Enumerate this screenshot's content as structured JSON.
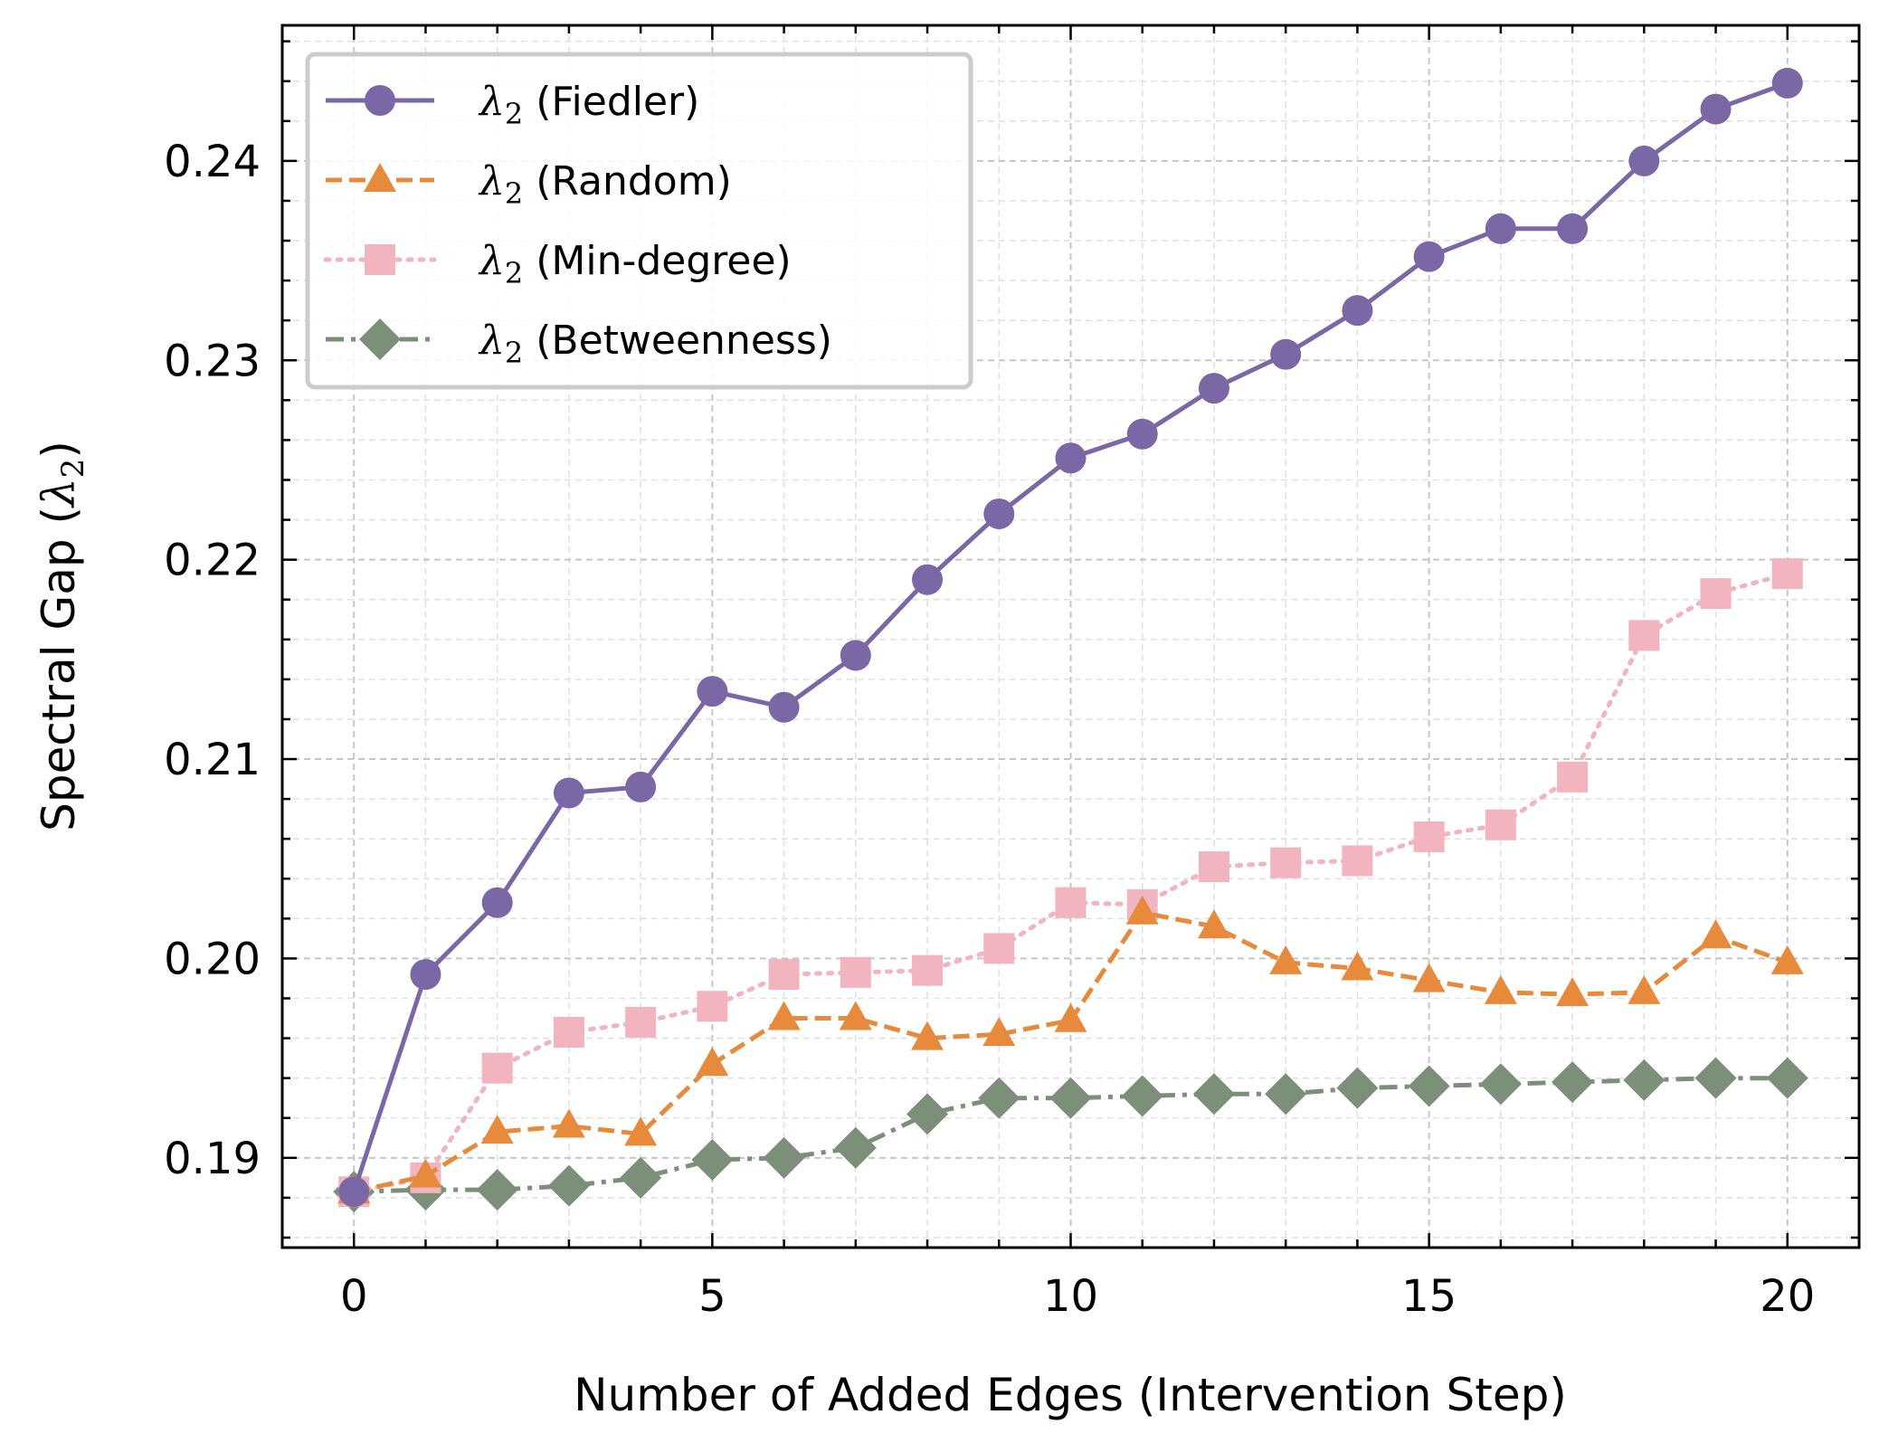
{
  "chart_data": {
    "type": "line",
    "xlabel": "Number of Added Edges (Intervention Step)",
    "ylabel_prefix": "Spectral Gap (",
    "ylabel_symbol": "λ",
    "ylabel_sub": "2",
    "ylabel_suffix": ")",
    "xlim": [
      -1,
      21
    ],
    "ylim": [
      0.1855,
      0.2468
    ],
    "xticks": [
      0,
      5,
      10,
      15,
      20
    ],
    "xtick_labels": [
      "0",
      "5",
      "10",
      "15",
      "20"
    ],
    "yticks": [
      0.19,
      0.2,
      0.21,
      0.22,
      0.23,
      0.24
    ],
    "ytick_labels": [
      "0.19",
      "0.20",
      "0.21",
      "0.22",
      "0.23",
      "0.24"
    ],
    "grid": true,
    "legend_position": "top-left",
    "x": [
      0,
      1,
      2,
      3,
      4,
      5,
      6,
      7,
      8,
      9,
      10,
      11,
      12,
      13,
      14,
      15,
      16,
      17,
      18,
      19,
      20
    ],
    "series": [
      {
        "name": "(Fiedler)",
        "symbol": "λ",
        "sub": "2",
        "color": "#7b66a6",
        "marker": "circle",
        "linestyle": "solid",
        "values": [
          0.1883,
          0.1992,
          0.2028,
          0.2083,
          0.2086,
          0.2134,
          0.2126,
          0.2152,
          0.219,
          0.2223,
          0.2251,
          0.2263,
          0.2286,
          0.2303,
          0.2325,
          0.2352,
          0.2366,
          0.2366,
          0.24,
          0.2426,
          0.2439
        ]
      },
      {
        "name": "(Random)",
        "symbol": "λ",
        "sub": "2",
        "color": "#e88a3c",
        "marker": "triangle",
        "linestyle": "dashed",
        "values": [
          0.1883,
          0.1891,
          0.1913,
          0.1916,
          0.1912,
          0.1947,
          0.197,
          0.197,
          0.196,
          0.1962,
          0.1969,
          0.2023,
          0.2016,
          0.1998,
          0.1995,
          0.1989,
          0.1983,
          0.1982,
          0.1983,
          0.2011,
          0.1998
        ]
      },
      {
        "name": "(Min-degree)",
        "symbol": "λ",
        "sub": "2",
        "color": "#f2b4bf",
        "marker": "square",
        "linestyle": "dotted",
        "values": [
          0.1883,
          0.189,
          0.1945,
          0.1963,
          0.1968,
          0.1976,
          0.1992,
          0.1993,
          0.1994,
          0.2005,
          0.2028,
          0.2027,
          0.2046,
          0.2048,
          0.2049,
          0.2061,
          0.2067,
          0.2091,
          0.2162,
          0.2183,
          0.2193
        ]
      },
      {
        "name": "(Betweenness)",
        "symbol": "λ",
        "sub": "2",
        "color": "#7b8f79",
        "marker": "diamond",
        "linestyle": "dashdot",
        "values": [
          0.1883,
          0.1884,
          0.1884,
          0.1886,
          0.189,
          0.1899,
          0.19,
          0.1905,
          0.1922,
          0.193,
          0.193,
          0.1931,
          0.1932,
          0.1932,
          0.1935,
          0.1936,
          0.1937,
          0.1938,
          0.1939,
          0.194,
          0.194
        ]
      }
    ]
  }
}
